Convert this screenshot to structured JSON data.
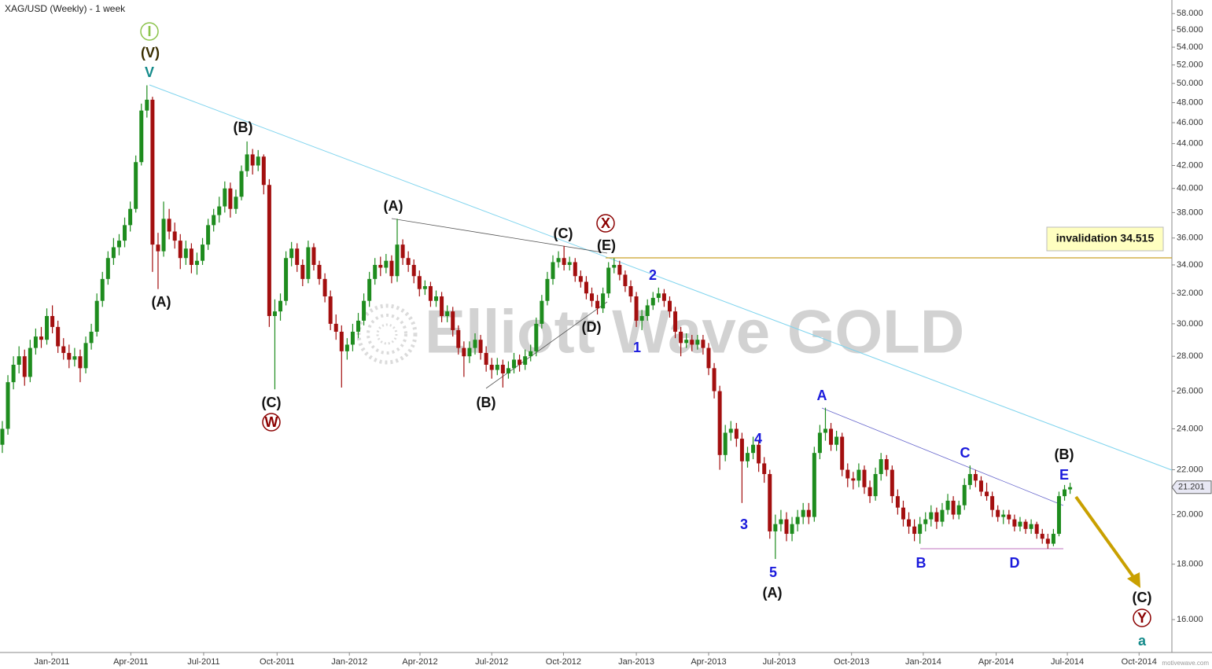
{
  "chart_data": {
    "type": "candlestick",
    "title": "XAG/USD (Weekly) - 1 week",
    "watermark": "Elliott Wave GOLD",
    "credit": "motivewave.com",
    "log_scale": true,
    "up_color": "#1e8c1e",
    "down_color": "#a30f0f",
    "xlim": [
      -0.42,
      210.3
    ],
    "xticks": [
      {
        "value": 8.9,
        "label": "Jan-2011"
      },
      {
        "value": 23.1,
        "label": "Apr-2011"
      },
      {
        "value": 36.2,
        "label": "Jul-2011"
      },
      {
        "value": 49.4,
        "label": "Oct-2011"
      },
      {
        "value": 62.4,
        "label": "Jan-2012"
      },
      {
        "value": 75.1,
        "label": "Apr-2012"
      },
      {
        "value": 88.0,
        "label": "Jul-2012"
      },
      {
        "value": 100.9,
        "label": "Oct-2012"
      },
      {
        "value": 114.0,
        "label": "Jan-2013"
      },
      {
        "value": 127.0,
        "label": "Apr-2013"
      },
      {
        "value": 139.7,
        "label": "Jul-2013"
      },
      {
        "value": 152.7,
        "label": "Oct-2013"
      },
      {
        "value": 165.6,
        "label": "Jan-2014"
      },
      {
        "value": 178.7,
        "label": "Apr-2014"
      },
      {
        "value": 191.5,
        "label": "Jul-2014"
      },
      {
        "value": 204.4,
        "label": "Oct-2014"
      }
    ],
    "ylim": [
      14.92,
      59.7
    ],
    "yticks": [
      {
        "value": 16,
        "label": "16.000"
      },
      {
        "value": 18,
        "label": "18.000"
      },
      {
        "value": 20,
        "label": "20.000"
      },
      {
        "value": 22,
        "label": "22.000"
      },
      {
        "value": 24,
        "label": "24.000"
      },
      {
        "value": 26,
        "label": "26.000"
      },
      {
        "value": 28,
        "label": "28.000"
      },
      {
        "value": 30,
        "label": "30.000"
      },
      {
        "value": 32,
        "label": "32.000"
      },
      {
        "value": 34,
        "label": "34.000"
      },
      {
        "value": 36,
        "label": "36.000"
      },
      {
        "value": 38,
        "label": "38.000"
      },
      {
        "value": 40,
        "label": "40.000"
      },
      {
        "value": 42,
        "label": "42.000"
      },
      {
        "value": 44,
        "label": "44.000"
      },
      {
        "value": 46,
        "label": "46.000"
      },
      {
        "value": 48,
        "label": "48.000"
      },
      {
        "value": 50,
        "label": "50.000"
      },
      {
        "value": 52,
        "label": "52.000"
      },
      {
        "value": 54,
        "label": "54.000"
      },
      {
        "value": 56,
        "label": "56.000"
      },
      {
        "value": 58,
        "label": "58.000"
      }
    ],
    "invalidation_level": 34.515,
    "invalidation_label": "invalidation 34.515",
    "labels": [
      "I",
      "(V)",
      "V",
      "(B)",
      "(A)",
      "(C)",
      "W",
      "(A)",
      "(C)",
      "X",
      "(E)",
      "(D)",
      "(B)",
      "2",
      "1",
      "4",
      "3",
      "5",
      "(A)",
      "A",
      "B",
      "C",
      "D",
      "E",
      "(B)",
      "(C)",
      "Y",
      "a"
    ],
    "ohlc": [
      [
        23.2,
        24.4,
        22.8,
        24.0
      ],
      [
        24.0,
        26.9,
        23.7,
        26.5
      ],
      [
        26.5,
        28.0,
        26.1,
        27.5
      ],
      [
        27.5,
        28.6,
        27.0,
        28.0
      ],
      [
        28.0,
        28.4,
        26.3,
        26.8
      ],
      [
        26.8,
        29.0,
        26.5,
        28.5
      ],
      [
        28.5,
        29.7,
        28.1,
        29.2
      ],
      [
        29.2,
        29.8,
        28.5,
        29.0
      ],
      [
        29.0,
        31.0,
        28.7,
        30.5
      ],
      [
        30.5,
        31.2,
        29.4,
        29.8
      ],
      [
        29.8,
        30.2,
        28.2,
        28.6
      ],
      [
        28.6,
        29.1,
        27.8,
        28.2
      ],
      [
        28.2,
        28.7,
        27.3,
        27.8
      ],
      [
        27.8,
        28.5,
        27.4,
        28.0
      ],
      [
        28.0,
        28.4,
        26.5,
        27.3
      ],
      [
        27.3,
        29.2,
        27.0,
        28.8
      ],
      [
        28.8,
        30.0,
        28.4,
        29.5
      ],
      [
        29.5,
        32.0,
        29.2,
        31.5
      ],
      [
        31.5,
        33.5,
        31.1,
        33.0
      ],
      [
        33.0,
        35.0,
        32.6,
        34.5
      ],
      [
        34.5,
        36.0,
        34.0,
        35.3
      ],
      [
        35.3,
        36.3,
        34.7,
        35.8
      ],
      [
        35.8,
        37.6,
        35.3,
        37.0
      ],
      [
        37.0,
        38.9,
        36.5,
        38.3
      ],
      [
        38.3,
        42.9,
        38.0,
        42.3
      ],
      [
        42.3,
        47.9,
        42.0,
        47.2
      ],
      [
        47.2,
        49.8,
        46.5,
        48.3
      ],
      [
        48.3,
        48.6,
        33.5,
        35.5
      ],
      [
        35.5,
        36.4,
        32.3,
        35.0
      ],
      [
        35.0,
        38.9,
        34.6,
        37.5
      ],
      [
        37.5,
        38.3,
        35.9,
        36.5
      ],
      [
        36.5,
        37.2,
        35.2,
        35.8
      ],
      [
        35.8,
        36.3,
        33.7,
        34.5
      ],
      [
        34.5,
        35.8,
        34.0,
        35.2
      ],
      [
        35.2,
        35.6,
        33.4,
        34.0
      ],
      [
        34.0,
        34.9,
        33.3,
        34.3
      ],
      [
        34.3,
        36.0,
        34.0,
        35.5
      ],
      [
        35.5,
        37.5,
        35.1,
        37.0
      ],
      [
        37.0,
        38.3,
        36.5,
        37.8
      ],
      [
        37.8,
        39.3,
        37.2,
        38.5
      ],
      [
        38.5,
        40.6,
        38.0,
        40.0
      ],
      [
        40.0,
        40.5,
        37.6,
        38.3
      ],
      [
        38.3,
        39.9,
        37.9,
        39.3
      ],
      [
        39.3,
        42.0,
        39.0,
        41.5
      ],
      [
        41.5,
        44.2,
        41.0,
        43.0
      ],
      [
        43.0,
        43.5,
        41.2,
        42.0
      ],
      [
        42.0,
        43.4,
        41.5,
        42.8
      ],
      [
        42.8,
        43.0,
        39.5,
        40.3
      ],
      [
        40.3,
        40.8,
        29.8,
        30.5
      ],
      [
        30.5,
        31.6,
        26.1,
        30.8
      ],
      [
        30.8,
        32.0,
        30.2,
        31.5
      ],
      [
        31.5,
        35.0,
        31.2,
        34.5
      ],
      [
        34.5,
        35.7,
        33.9,
        35.2
      ],
      [
        35.2,
        35.6,
        33.5,
        34.0
      ],
      [
        34.0,
        34.4,
        32.5,
        33.0
      ],
      [
        33.0,
        35.8,
        32.7,
        35.3
      ],
      [
        35.3,
        35.6,
        33.6,
        34.0
      ],
      [
        34.0,
        34.3,
        32.6,
        33.0
      ],
      [
        33.0,
        33.4,
        31.4,
        31.8
      ],
      [
        31.8,
        32.2,
        29.6,
        30.0
      ],
      [
        30.0,
        30.6,
        29.0,
        29.5
      ],
      [
        29.5,
        29.9,
        26.2,
        28.3
      ],
      [
        28.3,
        29.1,
        27.8,
        28.7
      ],
      [
        28.7,
        30.0,
        28.3,
        29.5
      ],
      [
        29.5,
        30.7,
        29.1,
        30.2
      ],
      [
        30.2,
        32.0,
        29.9,
        31.5
      ],
      [
        31.5,
        33.5,
        31.1,
        33.0
      ],
      [
        33.0,
        34.5,
        32.6,
        34.0
      ],
      [
        34.0,
        34.6,
        33.2,
        33.8
      ],
      [
        33.8,
        34.8,
        33.4,
        34.3
      ],
      [
        34.3,
        34.7,
        32.7,
        33.2
      ],
      [
        33.2,
        37.5,
        32.8,
        35.5
      ],
      [
        35.5,
        35.9,
        34.0,
        34.5
      ],
      [
        34.5,
        35.0,
        33.5,
        34.0
      ],
      [
        34.0,
        34.4,
        32.7,
        33.2
      ],
      [
        33.2,
        33.6,
        31.8,
        32.3
      ],
      [
        32.3,
        32.9,
        31.9,
        32.5
      ],
      [
        32.5,
        32.8,
        31.1,
        31.5
      ],
      [
        31.5,
        32.2,
        31.1,
        31.8
      ],
      [
        31.8,
        32.1,
        30.1,
        30.5
      ],
      [
        30.5,
        31.2,
        30.1,
        30.8
      ],
      [
        30.8,
        31.1,
        29.2,
        29.6
      ],
      [
        29.6,
        29.9,
        28.1,
        28.5
      ],
      [
        28.5,
        28.9,
        26.8,
        28.0
      ],
      [
        28.0,
        28.9,
        27.6,
        28.5
      ],
      [
        28.5,
        29.4,
        28.1,
        29.0
      ],
      [
        29.0,
        29.3,
        27.8,
        28.2
      ],
      [
        28.2,
        28.6,
        27.1,
        27.5
      ],
      [
        27.5,
        27.9,
        26.7,
        27.2
      ],
      [
        27.2,
        27.9,
        26.9,
        27.5
      ],
      [
        27.5,
        27.8,
        26.2,
        27.0
      ],
      [
        27.0,
        27.7,
        26.7,
        27.3
      ],
      [
        27.3,
        28.2,
        27.0,
        27.8
      ],
      [
        27.8,
        28.1,
        27.1,
        27.5
      ],
      [
        27.5,
        28.4,
        27.2,
        28.0
      ],
      [
        28.0,
        28.7,
        27.7,
        28.3
      ],
      [
        28.3,
        30.4,
        28.0,
        30.0
      ],
      [
        30.0,
        31.9,
        29.7,
        31.5
      ],
      [
        31.5,
        33.5,
        31.2,
        33.0
      ],
      [
        33.0,
        34.7,
        32.6,
        34.2
      ],
      [
        34.2,
        35.0,
        33.8,
        34.5
      ],
      [
        34.5,
        35.4,
        33.6,
        34.0
      ],
      [
        34.0,
        34.6,
        33.6,
        34.2
      ],
      [
        34.2,
        34.5,
        32.8,
        33.2
      ],
      [
        33.2,
        33.6,
        32.4,
        32.8
      ],
      [
        32.8,
        33.2,
        31.6,
        32.0
      ],
      [
        32.0,
        32.4,
        31.1,
        31.5
      ],
      [
        31.5,
        31.9,
        30.6,
        31.0
      ],
      [
        31.0,
        32.4,
        30.7,
        32.0
      ],
      [
        32.0,
        34.2,
        31.7,
        33.8
      ],
      [
        33.8,
        34.5,
        33.4,
        34.0
      ],
      [
        34.0,
        34.3,
        32.9,
        33.3
      ],
      [
        33.3,
        33.6,
        32.1,
        32.5
      ],
      [
        32.5,
        32.9,
        31.4,
        31.8
      ],
      [
        31.8,
        32.1,
        29.8,
        30.2
      ],
      [
        30.2,
        30.9,
        29.6,
        30.5
      ],
      [
        30.5,
        31.6,
        30.2,
        31.2
      ],
      [
        31.2,
        32.1,
        30.9,
        31.7
      ],
      [
        31.7,
        32.4,
        31.4,
        32.0
      ],
      [
        32.0,
        32.3,
        31.1,
        31.5
      ],
      [
        31.5,
        31.8,
        30.4,
        30.8
      ],
      [
        30.8,
        31.1,
        29.1,
        29.5
      ],
      [
        29.5,
        29.8,
        28.0,
        28.8
      ],
      [
        28.8,
        29.4,
        28.5,
        29.0
      ],
      [
        29.0,
        29.3,
        28.3,
        28.7
      ],
      [
        28.7,
        29.3,
        28.4,
        29.0
      ],
      [
        29.0,
        29.3,
        28.1,
        28.5
      ],
      [
        28.5,
        28.8,
        26.9,
        27.3
      ],
      [
        27.3,
        27.6,
        25.6,
        26.0
      ],
      [
        26.0,
        26.3,
        22.0,
        22.7
      ],
      [
        22.7,
        24.2,
        22.4,
        23.8
      ],
      [
        23.8,
        24.4,
        23.4,
        24.0
      ],
      [
        24.0,
        24.3,
        23.1,
        23.5
      ],
      [
        23.5,
        23.8,
        20.5,
        22.4
      ],
      [
        22.4,
        23.1,
        22.1,
        22.8
      ],
      [
        22.8,
        23.6,
        22.5,
        23.2
      ],
      [
        23.2,
        23.4,
        21.9,
        22.3
      ],
      [
        22.3,
        22.6,
        21.4,
        21.8
      ],
      [
        21.8,
        22.0,
        19.0,
        19.3
      ],
      [
        19.3,
        20.0,
        18.2,
        19.6
      ],
      [
        19.6,
        20.2,
        19.3,
        19.8
      ],
      [
        19.8,
        20.1,
        18.9,
        19.2
      ],
      [
        19.2,
        19.9,
        18.9,
        19.6
      ],
      [
        19.6,
        20.2,
        19.3,
        19.9
      ],
      [
        19.9,
        20.5,
        19.6,
        20.2
      ],
      [
        20.2,
        20.5,
        19.6,
        19.9
      ],
      [
        19.9,
        23.1,
        19.7,
        22.8
      ],
      [
        22.8,
        24.2,
        22.5,
        23.8
      ],
      [
        23.8,
        25.1,
        23.4,
        24.0
      ],
      [
        24.0,
        24.3,
        22.9,
        23.2
      ],
      [
        23.2,
        23.9,
        22.9,
        23.6
      ],
      [
        23.6,
        23.8,
        21.7,
        22.0
      ],
      [
        22.0,
        22.3,
        21.2,
        21.6
      ],
      [
        21.6,
        21.9,
        21.1,
        21.5
      ],
      [
        21.5,
        22.3,
        21.2,
        22.0
      ],
      [
        22.0,
        22.2,
        20.9,
        21.2
      ],
      [
        21.2,
        21.5,
        20.5,
        20.8
      ],
      [
        20.8,
        22.1,
        20.6,
        21.8
      ],
      [
        21.8,
        22.8,
        21.5,
        22.5
      ],
      [
        22.5,
        22.7,
        21.7,
        22.0
      ],
      [
        22.0,
        22.2,
        20.5,
        20.8
      ],
      [
        20.8,
        21.1,
        20.0,
        20.3
      ],
      [
        20.3,
        20.6,
        19.5,
        19.8
      ],
      [
        19.8,
        20.1,
        19.2,
        19.5
      ],
      [
        19.5,
        19.8,
        18.9,
        19.2
      ],
      [
        19.2,
        19.9,
        18.8,
        19.6
      ],
      [
        19.6,
        20.1,
        19.3,
        19.8
      ],
      [
        19.8,
        20.4,
        19.5,
        20.1
      ],
      [
        20.1,
        20.3,
        19.4,
        19.7
      ],
      [
        19.7,
        20.5,
        19.5,
        20.2
      ],
      [
        20.2,
        20.9,
        20.0,
        20.6
      ],
      [
        20.6,
        20.8,
        19.8,
        20.0
      ],
      [
        20.0,
        20.6,
        19.8,
        20.4
      ],
      [
        20.4,
        21.6,
        20.2,
        21.3
      ],
      [
        21.3,
        22.2,
        21.1,
        21.8
      ],
      [
        21.8,
        22.0,
        21.2,
        21.5
      ],
      [
        21.5,
        21.7,
        20.8,
        21.0
      ],
      [
        21.0,
        21.4,
        20.6,
        20.8
      ],
      [
        20.8,
        21.0,
        19.9,
        20.2
      ],
      [
        20.2,
        20.4,
        19.7,
        19.9
      ],
      [
        19.9,
        20.2,
        19.6,
        20.0
      ],
      [
        20.0,
        20.2,
        19.6,
        19.8
      ],
      [
        19.8,
        20.0,
        19.3,
        19.5
      ],
      [
        19.5,
        19.9,
        19.3,
        19.7
      ],
      [
        19.7,
        19.8,
        19.2,
        19.4
      ],
      [
        19.4,
        19.8,
        19.2,
        19.6
      ],
      [
        19.6,
        19.7,
        19.0,
        19.2
      ],
      [
        19.2,
        19.4,
        18.8,
        19.0
      ],
      [
        19.0,
        19.2,
        18.6,
        18.8
      ],
      [
        18.8,
        19.4,
        18.7,
        19.2
      ],
      [
        19.2,
        21.0,
        19.1,
        20.8
      ],
      [
        20.8,
        21.3,
        20.6,
        21.1
      ],
      [
        21.1,
        21.4,
        20.9,
        21.201
      ]
    ]
  }
}
